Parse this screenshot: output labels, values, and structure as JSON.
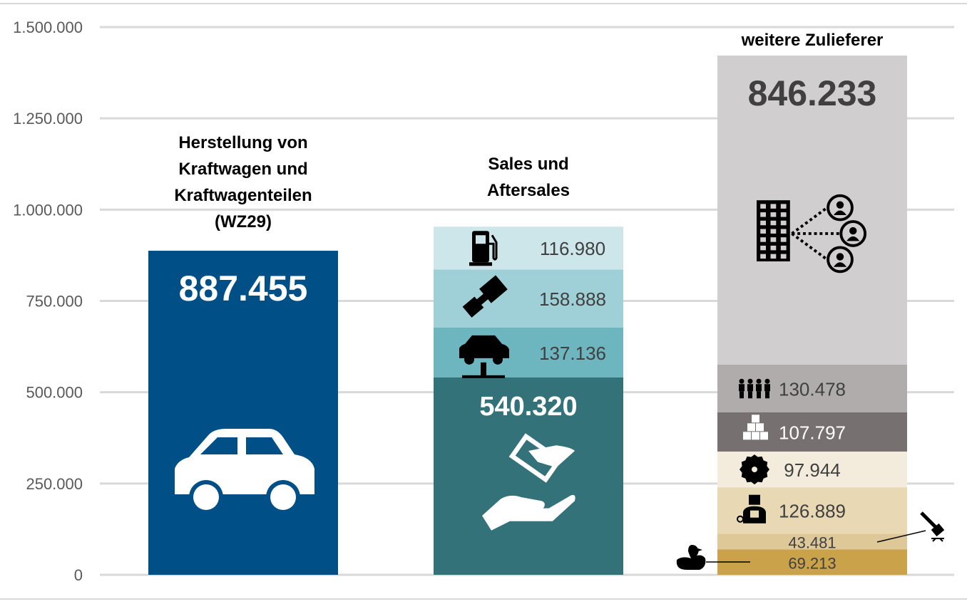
{
  "chart_data": {
    "type": "stacked-bar",
    "ylim": [
      0,
      1500000
    ],
    "yticks": [
      0,
      250000,
      500000,
      750000,
      1000000,
      1250000,
      1500000
    ],
    "ytick_labels": [
      "0",
      "250.000",
      "500.000",
      "750.000",
      "1.000.000",
      "1.250.000",
      "1.500.000"
    ],
    "grid": true,
    "bars": [
      {
        "category": "Herstellung von\nKraftwagen und\nKraftwagenteilen\n(WZ29)",
        "segments": [
          {
            "value": 887455,
            "label": "887.455",
            "color": "#004f86",
            "label_color": "#ffffff",
            "label_style": "big",
            "icon": "car-icon"
          }
        ]
      },
      {
        "category": "Sales und\nAftersales",
        "segments": [
          {
            "value": 540320,
            "label": "540.320",
            "color": "#34727a",
            "label_color": "#ffffff",
            "label_style": "big",
            "icon": "hand-money-icon"
          },
          {
            "value": 137136,
            "label": "137.136",
            "color": "#6db6c0",
            "label_color": "#404040",
            "icon": "car-lift-icon"
          },
          {
            "value": 158888,
            "label": "158.888",
            "color": "#9fd0d7",
            "label_color": "#404040",
            "icon": "seatbelt-icon"
          },
          {
            "value": 116980,
            "label": "116.980",
            "color": "#cce6ea",
            "label_color": "#404040",
            "icon": "fuel-pump-icon"
          }
        ]
      },
      {
        "category": "weitere Zulieferer",
        "segments": [
          {
            "value": 69213,
            "label": "69.213",
            "color": "#c9a24a",
            "label_color": "#404040",
            "icon": "rubber-duck-icon"
          },
          {
            "value": 43481,
            "label": "43.481",
            "color": "#dfc898",
            "label_color": "#404040",
            "icon": "hammer-icon"
          },
          {
            "value": 126889,
            "label": "126.889",
            "color": "#e8d9b4",
            "label_color": "#404040",
            "icon": "worker-icon"
          },
          {
            "value": 97944,
            "label": "97.944",
            "color": "#f3ecdc",
            "label_color": "#404040",
            "icon": "saw-blade-icon"
          },
          {
            "value": 107797,
            "label": "107.797",
            "color": "#767170",
            "label_color": "#ffffff",
            "icon": "boxes-icon"
          },
          {
            "value": 130478,
            "label": "130.478",
            "color": "#b0acab",
            "label_color": "#404040",
            "icon": "people-icon"
          },
          {
            "value": 846233,
            "label": "846.233",
            "color": "#d0cecf",
            "label_color": "#404040",
            "label_style": "big",
            "icon": "building-network-icon"
          }
        ]
      }
    ]
  }
}
